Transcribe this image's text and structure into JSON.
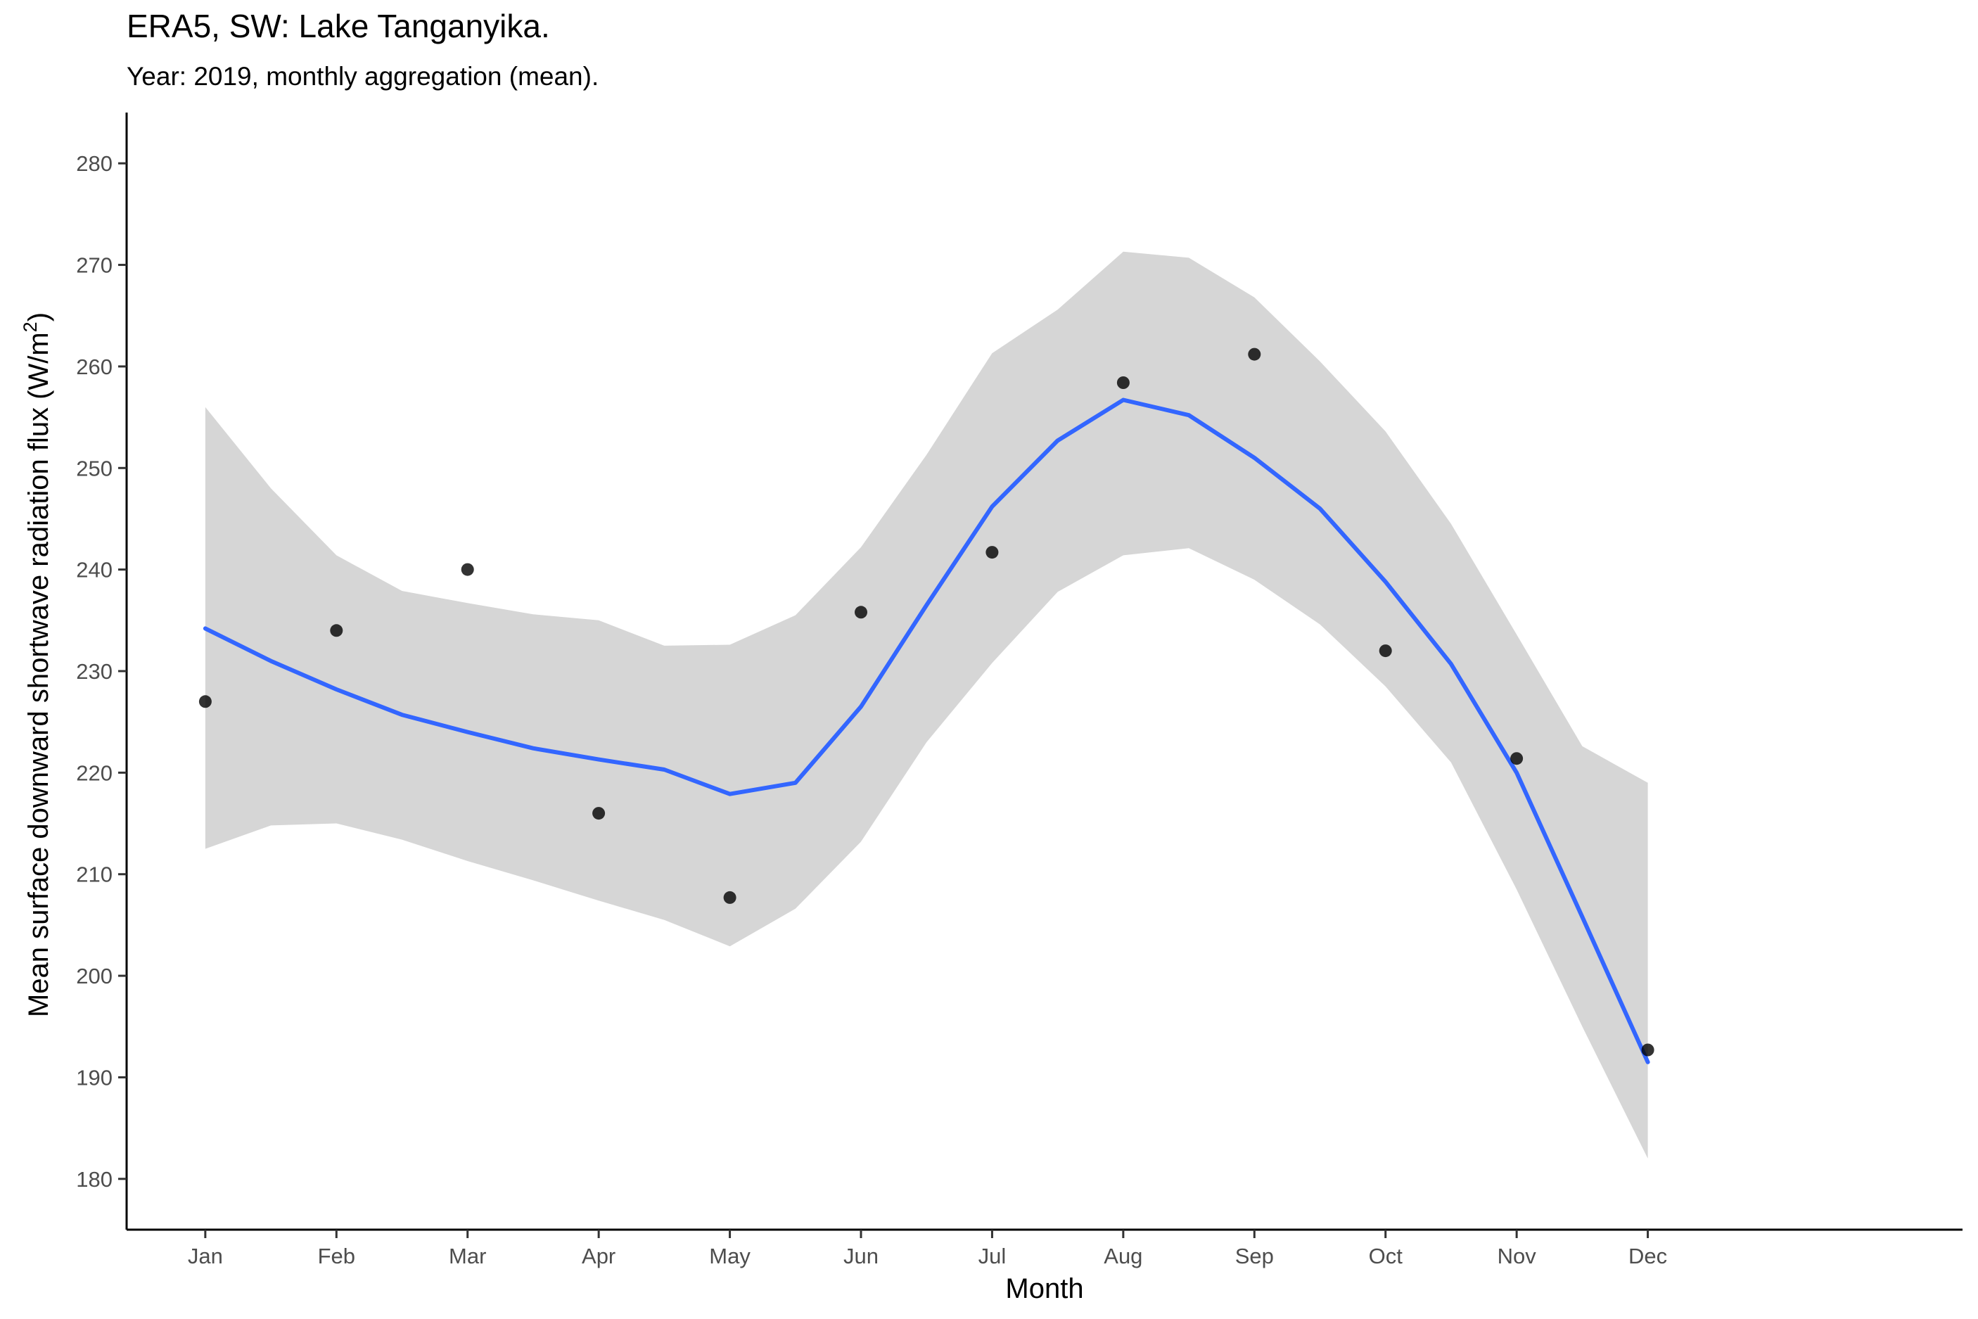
{
  "chart_data": {
    "type": "scatter",
    "title": "ERA5, SW: Lake Tanganyika.",
    "subtitle": "Year: 2019, monthly aggregation (mean).",
    "xlabel": "Month",
    "ylabel": "Mean surface downward shortwave radiation flux (W/m",
    "ylabel_superscript": "2",
    "ylabel_suffix": ")",
    "categories": [
      "Jan",
      "Feb",
      "Mar",
      "Apr",
      "May",
      "Jun",
      "Jul",
      "Aug",
      "Sep",
      "Oct",
      "Nov",
      "Dec"
    ],
    "ylim": [
      175,
      285
    ],
    "xlim": [
      0.4,
      14.4
    ],
    "y_ticks": [
      180,
      190,
      200,
      210,
      220,
      230,
      240,
      250,
      260,
      270,
      280
    ],
    "grid": false,
    "points": {
      "color": "#000000",
      "x": [
        1,
        2,
        3,
        4,
        5,
        6,
        7,
        8,
        9,
        10,
        11,
        12
      ],
      "y": [
        227.0,
        234.0,
        240.0,
        216.0,
        207.7,
        235.8,
        241.7,
        258.4,
        261.2,
        232.0,
        221.4,
        192.7
      ]
    },
    "smooth": {
      "method": "loess",
      "color": "#3366FF",
      "ribbon_color": "#D6D6D6",
      "x": [
        1.0,
        1.5,
        2.0,
        2.5,
        3.0,
        3.5,
        4.0,
        4.5,
        5.0,
        5.5,
        6.0,
        6.5,
        7.0,
        7.5,
        8.0,
        8.5,
        9.0,
        9.5,
        10.0,
        10.5,
        11.0,
        11.5,
        12.0
      ],
      "y": [
        234.2,
        231.0,
        228.2,
        225.7,
        224.0,
        222.4,
        221.3,
        220.3,
        217.9,
        219.0,
        226.5,
        236.5,
        246.2,
        252.7,
        256.7,
        255.2,
        251.0,
        246.0,
        238.8,
        230.7,
        220.0,
        205.8,
        191.5
      ],
      "lower": [
        212.5,
        214.8,
        215.0,
        213.4,
        211.3,
        209.4,
        207.4,
        205.5,
        202.9,
        206.6,
        213.2,
        223.0,
        230.8,
        237.8,
        241.4,
        242.1,
        239.0,
        234.6,
        228.5,
        221.0,
        208.5,
        195.0,
        182.0
      ],
      "upper": [
        256.0,
        248.0,
        241.4,
        237.9,
        236.7,
        235.6,
        235.0,
        232.5,
        232.6,
        235.5,
        242.2,
        251.3,
        261.3,
        265.6,
        271.3,
        270.7,
        266.8,
        260.5,
        253.6,
        244.5,
        233.6,
        222.6,
        219.0
      ]
    }
  }
}
